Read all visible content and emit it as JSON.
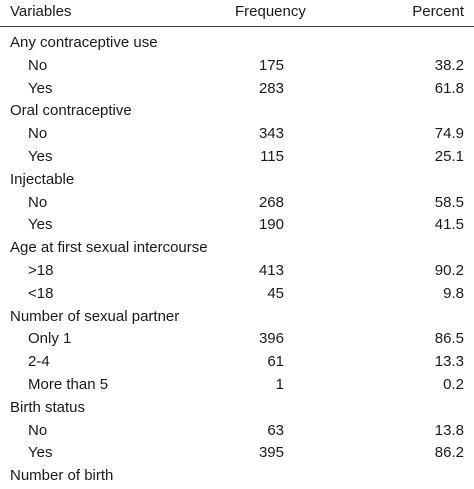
{
  "header": {
    "variables": "Variables",
    "frequency": "Frequency",
    "percent": "Percent"
  },
  "rows": [
    {
      "type": "group",
      "label": "Any contraceptive use"
    },
    {
      "type": "item",
      "label": "No",
      "frequency": "175",
      "percent": "38.2"
    },
    {
      "type": "item",
      "label": "Yes",
      "frequency": "283",
      "percent": "61.8"
    },
    {
      "type": "group",
      "label": "Oral contraceptive"
    },
    {
      "type": "item",
      "label": "No",
      "frequency": "343",
      "percent": "74.9"
    },
    {
      "type": "item",
      "label": "Yes",
      "frequency": "115",
      "percent": "25.1"
    },
    {
      "type": "group",
      "label": "Injectable"
    },
    {
      "type": "item",
      "label": "No",
      "frequency": "268",
      "percent": "58.5"
    },
    {
      "type": "item",
      "label": "Yes",
      "frequency": "190",
      "percent": "41.5"
    },
    {
      "type": "group",
      "label": "Age at first sexual intercourse"
    },
    {
      "type": "item",
      "label": ">18",
      "frequency": "413",
      "percent": "90.2"
    },
    {
      "type": "item",
      "label": "<18",
      "frequency": "45",
      "percent": "9.8"
    },
    {
      "type": "group",
      "label": "Number of sexual partner"
    },
    {
      "type": "item",
      "label": "Only 1",
      "frequency": "396",
      "percent": "86.5"
    },
    {
      "type": "item",
      "label": "2-4",
      "frequency": "61",
      "percent": "13.3"
    },
    {
      "type": "item",
      "label": "More than 5",
      "frequency": "1",
      "percent": "0.2"
    },
    {
      "type": "group",
      "label": "Birth status"
    },
    {
      "type": "item",
      "label": "No",
      "frequency": "63",
      "percent": "13.8"
    },
    {
      "type": "item",
      "label": "Yes",
      "frequency": "395",
      "percent": "86.2"
    },
    {
      "type": "group",
      "label": "Number of birth"
    }
  ]
}
